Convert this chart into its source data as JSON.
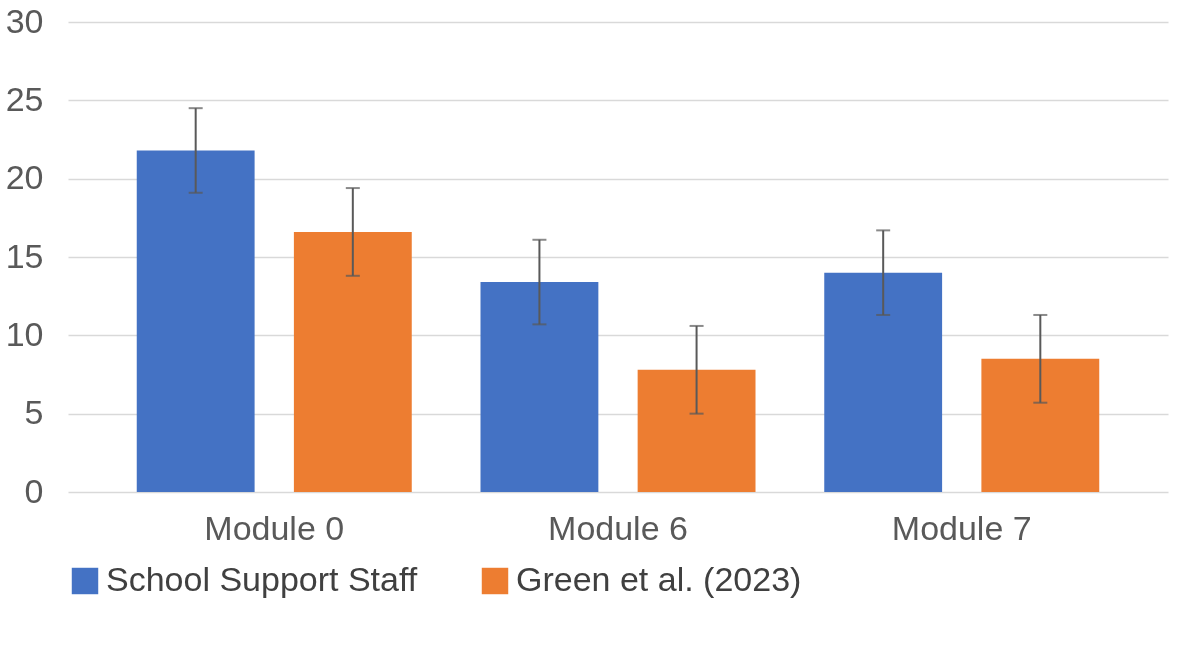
{
  "chart_data": {
    "type": "bar",
    "categories": [
      "Module 0",
      "Module 6",
      "Module 7"
    ],
    "series": [
      {
        "name": "School Support Staff",
        "color": "#4472c4",
        "values": [
          21.8,
          13.4,
          14.0
        ],
        "errors": [
          2.7,
          2.7,
          2.7
        ]
      },
      {
        "name": "Green et al. (2023)",
        "color": "#ed7d31",
        "values": [
          16.6,
          7.8,
          8.5
        ],
        "errors": [
          2.8,
          2.8,
          2.8
        ]
      }
    ],
    "ylim": [
      0,
      30
    ],
    "yticks": [
      0,
      5,
      10,
      15,
      20,
      25,
      30
    ],
    "grid": "y",
    "legend": "bottom"
  }
}
